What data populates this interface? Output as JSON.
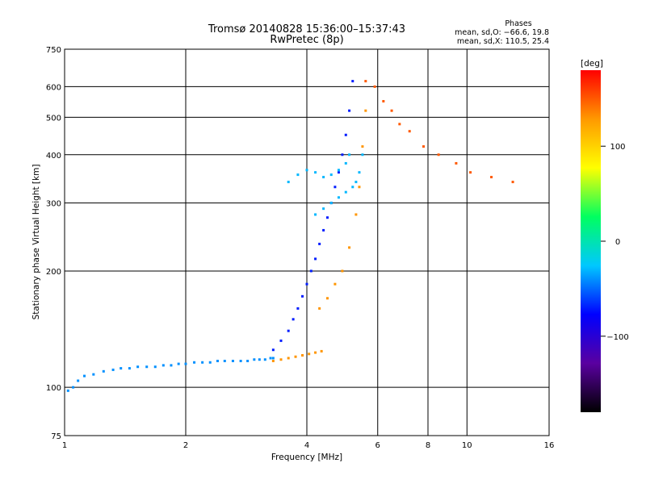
{
  "chart_data": {
    "type": "scatter",
    "title": "Tromsø 20140828 15:36:00–15:37:43",
    "subtitle": "RwPretec (8p)",
    "xlabel": "Frequency [MHz]",
    "ylabel": "Stationary phase Virtual Height [km]",
    "x_scale": "log",
    "y_scale": "log",
    "xlim": [
      1,
      16
    ],
    "ylim": [
      75,
      750
    ],
    "x_ticks": [
      {
        "value": 1,
        "label": "1"
      },
      {
        "value": 2,
        "label": "2"
      },
      {
        "value": 4,
        "label": "4"
      },
      {
        "value": 6,
        "label": "6"
      },
      {
        "value": 8,
        "label": "8"
      },
      {
        "value": 10,
        "label": "10"
      },
      {
        "value": 16,
        "label": "16"
      }
    ],
    "y_ticks": [
      {
        "value": 75,
        "label": "75"
      },
      {
        "value": 100,
        "label": "100"
      },
      {
        "value": 200,
        "label": "200"
      },
      {
        "value": 300,
        "label": "300"
      },
      {
        "value": 400,
        "label": "400"
      },
      {
        "value": 500,
        "label": "500"
      },
      {
        "value": 600,
        "label": "600"
      },
      {
        "value": 750,
        "label": "750"
      }
    ],
    "grid": true,
    "phase_stats": {
      "heading": "Phases",
      "o_line": "mean, sd,O: −66.6, 19.8",
      "x_line": "mean, sd,X: 110.5, 25.4"
    },
    "colorbar": {
      "label": "[deg]",
      "range": [
        -180,
        180
      ],
      "ticks": [
        {
          "value": 100,
          "label": "100"
        },
        {
          "value": 0,
          "label": "0"
        },
        {
          "value": -100,
          "label": "−100"
        }
      ],
      "colormap": [
        "#000000",
        "#5a00a0",
        "#0000ff",
        "#00c8ff",
        "#00ff60",
        "#ffff00",
        "#ff9900",
        "#ff0000"
      ]
    },
    "series": [
      {
        "x": [
          1.02,
          1.05,
          1.08,
          1.12,
          1.18,
          1.25,
          1.32,
          1.38,
          1.45,
          1.52,
          1.6,
          1.68,
          1.76,
          1.84,
          1.92,
          2.0,
          2.1,
          2.2,
          2.3,
          2.4,
          2.5,
          2.62,
          2.74,
          2.85,
          2.96,
          3.05,
          3.15,
          3.25,
          3.3
        ],
        "y": [
          98,
          100,
          104,
          107,
          108,
          110,
          111,
          112,
          112,
          113,
          113,
          113,
          114,
          114,
          115,
          115,
          116,
          116,
          116,
          117,
          117,
          117,
          117,
          117,
          118,
          118,
          118,
          119,
          119
        ],
        "phase": -40
      },
      {
        "x": [
          3.3,
          3.45,
          3.6,
          3.75,
          3.9,
          4.05,
          4.2,
          4.35
        ],
        "y": [
          117,
          118,
          119,
          120,
          121,
          122,
          123,
          124
        ],
        "phase": 130
      },
      {
        "x": [
          3.3,
          3.45,
          3.6,
          3.7,
          3.8,
          3.9,
          4.0,
          4.1,
          4.2,
          4.3,
          4.4,
          4.5,
          4.6,
          4.7,
          4.8,
          4.9,
          5.0,
          5.1,
          5.2
        ],
        "y": [
          125,
          132,
          140,
          150,
          160,
          172,
          185,
          200,
          215,
          235,
          255,
          275,
          300,
          330,
          360,
          400,
          450,
          520,
          620
        ],
        "phase": -70
      },
      {
        "x": [
          3.6,
          3.8,
          4.0,
          4.2,
          4.4,
          4.6,
          4.8,
          5.0,
          5.1
        ],
        "y": [
          340,
          355,
          365,
          360,
          350,
          355,
          365,
          380,
          400
        ],
        "phase": -30
      },
      {
        "x": [
          4.2,
          4.4,
          4.6,
          4.8,
          5.0,
          5.2,
          5.3,
          5.4,
          5.5
        ],
        "y": [
          280,
          290,
          300,
          310,
          320,
          330,
          340,
          360,
          400
        ],
        "phase": -30
      },
      {
        "x": [
          4.3,
          4.5,
          4.7,
          4.9,
          5.1,
          5.3,
          5.4,
          5.5,
          5.6
        ],
        "y": [
          160,
          170,
          185,
          200,
          230,
          280,
          330,
          420,
          520
        ],
        "phase": 130
      },
      {
        "x": [
          5.6,
          5.9,
          6.2,
          6.5,
          6.8,
          7.2,
          7.8,
          8.5,
          9.4,
          10.2,
          11.5,
          13.0
        ],
        "y": [
          620,
          600,
          550,
          520,
          480,
          460,
          420,
          400,
          380,
          360,
          350,
          340
        ],
        "phase": 150
      }
    ]
  }
}
